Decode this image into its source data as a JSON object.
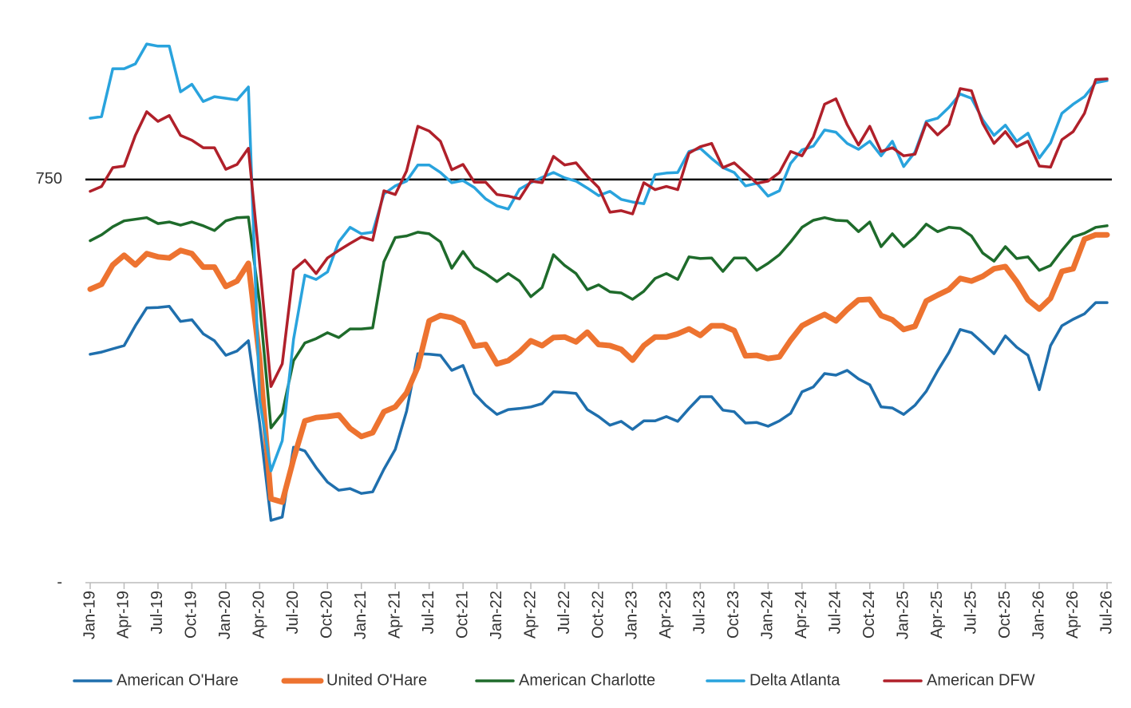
{
  "chart_data": {
    "type": "line",
    "categories": [
      "Jan-19",
      null,
      null,
      "Apr-19",
      null,
      null,
      "Jul-19",
      null,
      null,
      "Oct-19",
      null,
      null,
      "Jan-20",
      null,
      null,
      "Apr-20",
      null,
      null,
      "Jul-20",
      null,
      null,
      "Oct-20",
      null,
      null,
      "Jan-21",
      null,
      null,
      "Apr-21",
      null,
      null,
      "Jul-21",
      null,
      null,
      "Oct-21",
      null,
      null,
      "Jan-22",
      null,
      null,
      "Apr-22",
      null,
      null,
      "Jul-22",
      null,
      null,
      "Oct-22",
      null,
      null,
      "Jan-23",
      null,
      null,
      "Apr-23",
      null,
      null,
      "Jul-23",
      null,
      null,
      "Oct-23",
      null,
      null,
      "Jan-24",
      null,
      null,
      "Apr-24",
      null,
      null,
      "Jul-24",
      null,
      null,
      "Oct-24",
      null,
      null,
      "Jan-25",
      null,
      null,
      "Apr-25",
      null,
      null,
      "Jul-25",
      null,
      null,
      "Oct-25",
      null,
      null,
      "Jan-26",
      null,
      null,
      "Apr-26",
      null,
      null,
      "Jul-26"
    ],
    "series": [
      {
        "name": "American O'Hare",
        "color": "#1f6fad",
        "values": [
          425,
          429,
          435,
          441,
          478,
          511,
          512,
          514,
          486,
          489,
          463,
          450,
          423,
          431,
          450,
          297,
          116,
          122,
          252,
          245,
          214,
          187,
          172,
          175,
          166,
          169,
          211,
          248,
          319,
          426,
          425,
          423,
          395,
          404,
          352,
          330,
          313,
          322,
          324,
          327,
          333,
          355,
          354,
          352,
          322,
          309,
          293,
          300,
          285,
          301,
          301,
          309,
          300,
          324,
          346,
          346,
          321,
          318,
          297,
          298,
          291,
          301,
          315,
          355,
          364,
          389,
          386,
          395,
          379,
          368,
          327,
          325,
          313,
          330,
          356,
          394,
          428,
          471,
          465,
          446,
          426,
          459,
          438,
          423,
          359,
          441,
          478,
          490,
          500,
          521,
          521
        ]
      },
      {
        "name": "United O'Hare",
        "color": "#ed7330",
        "width": 7,
        "values": [
          546,
          555,
          591,
          609,
          591,
          612,
          606,
          604,
          618,
          612,
          587,
          587,
          551,
          561,
          594,
          416,
          156,
          150,
          230,
          301,
          307,
          309,
          312,
          287,
          272,
          279,
          318,
          327,
          353,
          401,
          487,
          497,
          493,
          483,
          440,
          443,
          407,
          413,
          429,
          450,
          441,
          456,
          457,
          448,
          466,
          443,
          441,
          434,
          414,
          441,
          457,
          457,
          463,
          472,
          460,
          478,
          478,
          469,
          422,
          423,
          417,
          420,
          451,
          478,
          489,
          499,
          487,
          508,
          526,
          527,
          497,
          489,
          471,
          477,
          524,
          535,
          545,
          566,
          561,
          570,
          584,
          588,
          560,
          526,
          509,
          529,
          579,
          584,
          639,
          647,
          647
        ]
      },
      {
        "name": "American Charlotte",
        "color": "#1e6b2b",
        "values": [
          636,
          647,
          662,
          673,
          676,
          679,
          668,
          671,
          665,
          671,
          664,
          655,
          673,
          679,
          680,
          520,
          288,
          315,
          413,
          446,
          454,
          465,
          456,
          472,
          472,
          474,
          597,
          642,
          645,
          652,
          649,
          634,
          585,
          616,
          587,
          575,
          560,
          575,
          561,
          532,
          549,
          610,
          590,
          575,
          545,
          554,
          541,
          539,
          527,
          542,
          566,
          575,
          564,
          606,
          603,
          604,
          579,
          604,
          604,
          581,
          594,
          610,
          634,
          661,
          674,
          679,
          674,
          673,
          653,
          671,
          625,
          649,
          625,
          643,
          667,
          653,
          661,
          659,
          645,
          613,
          598,
          625,
          603,
          606,
          581,
          590,
          618,
          643,
          650,
          661,
          664
        ]
      },
      {
        "name": "Delta Atlanta",
        "color": "#29a3dd",
        "values": [
          864,
          867,
          956,
          956,
          965,
          1002,
          998,
          998,
          913,
          927,
          895,
          904,
          901,
          898,
          922,
          340,
          208,
          264,
          453,
          572,
          564,
          578,
          634,
          661,
          649,
          652,
          723,
          738,
          747,
          777,
          777,
          763,
          744,
          748,
          735,
          714,
          701,
          695,
          732,
          744,
          754,
          763,
          753,
          747,
          734,
          720,
          728,
          713,
          708,
          705,
          759,
          762,
          763,
          802,
          808,
          789,
          772,
          763,
          738,
          743,
          719,
          729,
          780,
          805,
          812,
          842,
          838,
          817,
          806,
          821,
          794,
          821,
          774,
          801,
          858,
          864,
          884,
          909,
          901,
          861,
          832,
          851,
          821,
          836,
          790,
          818,
          873,
          890,
          904,
          930,
          934
        ]
      },
      {
        "name": "American DFW",
        "color": "#b0202a",
        "values": [
          728,
          737,
          772,
          775,
          832,
          876,
          858,
          869,
          832,
          823,
          809,
          809,
          769,
          778,
          808,
          594,
          365,
          407,
          582,
          600,
          575,
          604,
          618,
          631,
          643,
          637,
          729,
          722,
          766,
          849,
          840,
          821,
          768,
          778,
          745,
          745,
          722,
          719,
          714,
          747,
          744,
          793,
          777,
          781,
          756,
          735,
          689,
          692,
          686,
          744,
          731,
          737,
          731,
          799,
          811,
          817,
          772,
          781,
          762,
          743,
          747,
          763,
          802,
          794,
          829,
          890,
          900,
          852,
          814,
          849,
          802,
          809,
          794,
          797,
          855,
          833,
          852,
          919,
          915,
          854,
          817,
          839,
          811,
          821,
          775,
          773,
          824,
          839,
          873,
          936,
          937
        ]
      }
    ],
    "ylim": [
      0,
      1020
    ],
    "yticks": [
      {
        "value": 0,
        "label": "-"
      },
      750
    ],
    "hline": 750,
    "legend": "bottom"
  }
}
